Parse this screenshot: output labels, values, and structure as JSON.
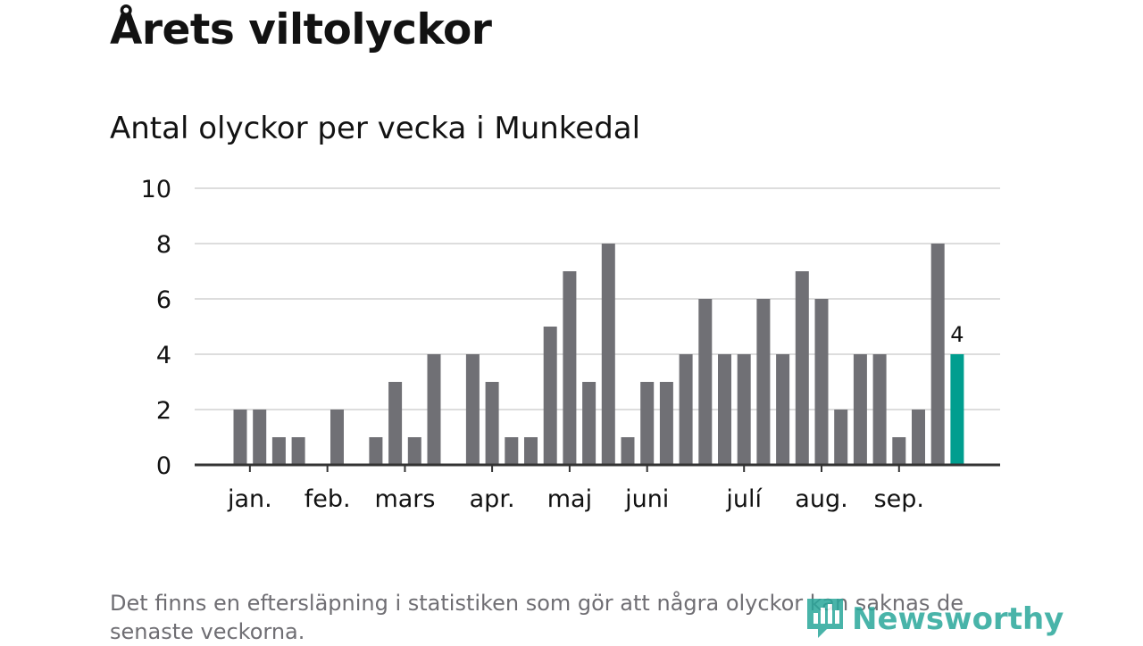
{
  "title": "Årets viltolyckor",
  "subtitle": "Antal olyckor per vecka i Munkedal",
  "footnote": "Det finns en eftersläpning i statistiken som gör att några olyckor kan saknas de senaste veckorna.",
  "brand": {
    "name": "Newsworthy",
    "icon": "newsworthy-logo-icon"
  },
  "colors": {
    "bar": "#707075",
    "highlight": "#009e8f",
    "grid": "#dddddd",
    "axis": "#333333",
    "text": "#121212"
  },
  "chart_data": {
    "type": "bar",
    "x": [
      1,
      2,
      3,
      4,
      5,
      6,
      7,
      8,
      9,
      10,
      11,
      12,
      13,
      14,
      15,
      16,
      17,
      18,
      19,
      20,
      21,
      22,
      23,
      24,
      25,
      26,
      27,
      28,
      29,
      30,
      31,
      32,
      33,
      34,
      35,
      36,
      37,
      38
    ],
    "values": [
      2,
      2,
      1,
      1,
      0,
      2,
      0,
      1,
      3,
      1,
      4,
      0,
      4,
      3,
      1,
      1,
      5,
      7,
      3,
      8,
      1,
      3,
      3,
      4,
      6,
      4,
      4,
      6,
      4,
      7,
      6,
      2,
      4,
      4,
      1,
      2,
      8,
      4
    ],
    "highlight_index": 37,
    "highlight_label": "4",
    "month_labels": [
      {
        "label": "jan.",
        "x": 1.5
      },
      {
        "label": "feb.",
        "x": 5.5
      },
      {
        "label": "mars",
        "x": 9.5
      },
      {
        "label": "apr.",
        "x": 14.0
      },
      {
        "label": "maj",
        "x": 18.0
      },
      {
        "label": "juni",
        "x": 22.0
      },
      {
        "label": "julí",
        "x": 27.0
      },
      {
        "label": "aug.",
        "x": 31.0
      },
      {
        "label": "sep.",
        "x": 35.0
      }
    ],
    "y_ticks": [
      "0",
      "2",
      "4",
      "6",
      "8",
      "10"
    ],
    "ylim": [
      0,
      10
    ],
    "grid": true,
    "xlabel": "",
    "ylabel": ""
  }
}
